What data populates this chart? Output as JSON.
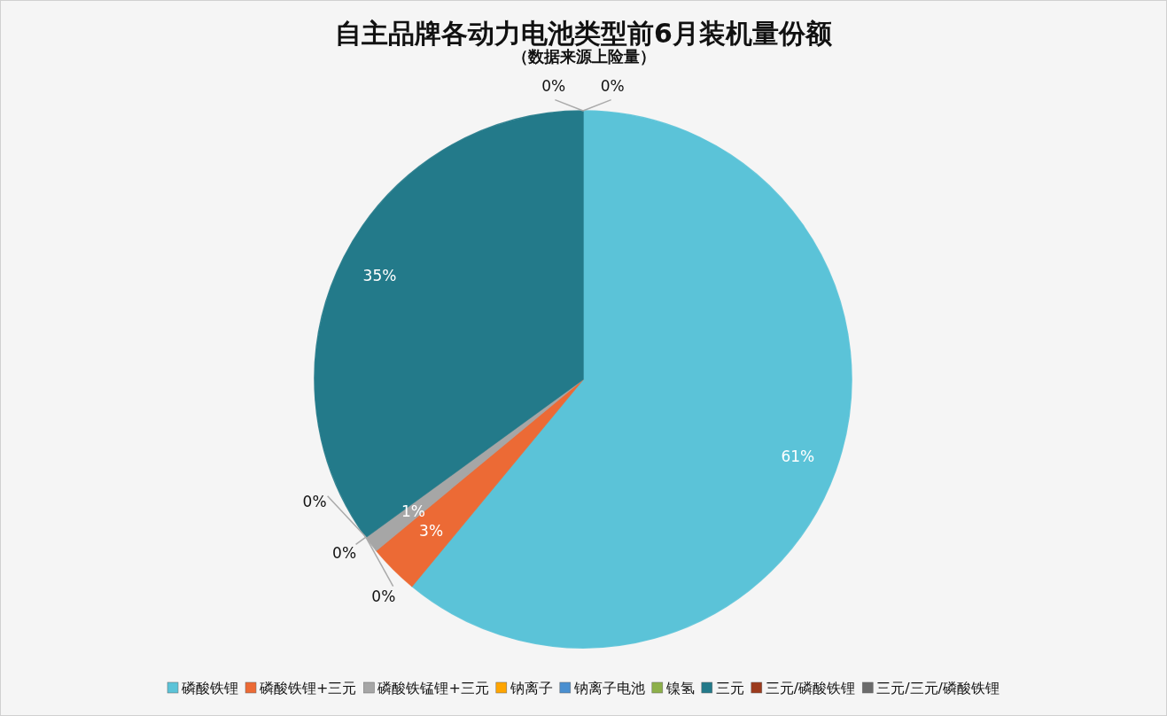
{
  "chart_data": {
    "type": "pie",
    "title": "自主品牌各动力电池类型前6月装机量份额",
    "subtitle": "（数据来源上险量）",
    "categories": [
      "磷酸铁锂",
      "磷酸铁锂+三元",
      "磷酸铁锰锂+三元",
      "钠离子",
      "钠离子电池",
      "镍氢",
      "三元",
      "三元/磷酸铁锂",
      "三元/三元/磷酸铁锂"
    ],
    "values": [
      61,
      3,
      1,
      0,
      0,
      0,
      35,
      0,
      0
    ],
    "value_labels": [
      "61%",
      "3%",
      "1%",
      "0%",
      "0%",
      "0%",
      "35%",
      "0%",
      "0%"
    ],
    "colors": [
      "#5bc3d8",
      "#ec6a35",
      "#a6a6a6",
      "#ffa500",
      "#4a8fd0",
      "#8db04a",
      "#237a8a",
      "#9c3a1c",
      "#6b6b6b"
    ],
    "legend": "bottom"
  }
}
